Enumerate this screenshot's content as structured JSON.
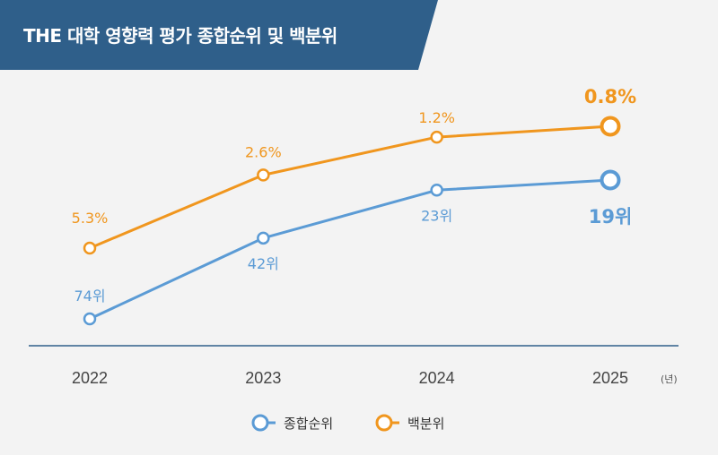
{
  "title": "THE 대학 영향력 평가 종합순위 및 백분위",
  "chart_data": {
    "type": "line",
    "categories": [
      "2022",
      "2023",
      "2024",
      "2025"
    ],
    "x_unit": "(년)",
    "series": [
      {
        "name": "종합순위",
        "values": [
          74,
          42,
          23,
          19
        ],
        "labels": [
          "74위",
          "42위",
          "23위",
          "19위"
        ],
        "color": "#5b9bd5"
      },
      {
        "name": "백분위",
        "values": [
          5.3,
          2.6,
          1.2,
          0.8
        ],
        "labels": [
          "5.3%",
          "2.6%",
          "1.2%",
          "0.8%"
        ],
        "color": "#f0961e"
      }
    ],
    "legend_position": "bottom",
    "grid": false,
    "highlight_last": true
  },
  "colors": {
    "banner": "#2f5f8a",
    "axis": "#2f5f8a",
    "background": "#f3f3f3"
  }
}
